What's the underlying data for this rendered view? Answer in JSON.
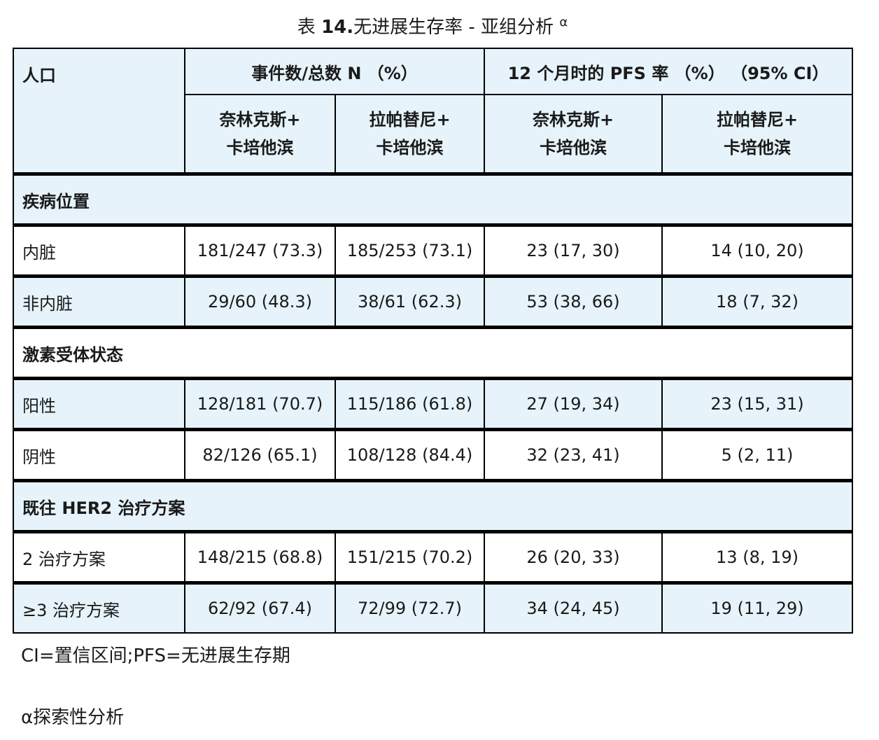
{
  "caption": {
    "prefix": "表 ",
    "number": "14.",
    "title": "无进展生存率 - 亚组分析",
    "sup": "α"
  },
  "header": {
    "population": "人口",
    "events_group": "事件数/总数 N （%）",
    "pfs_group": "12 个月时的 PFS 率 （%） （95% CI）",
    "sub": [
      [
        "奈林克斯+",
        "卡培他滨"
      ],
      [
        "拉帕替尼+",
        "卡培他滨"
      ],
      [
        "奈林克斯+",
        "卡培他滨"
      ],
      [
        "拉帕替尼+",
        "卡培他滨"
      ]
    ]
  },
  "rows": [
    {
      "type": "section",
      "label": "疾病位置",
      "shade": "blue"
    },
    {
      "type": "data",
      "shade": "white",
      "cells": [
        "内脏",
        "181/247 (73.3)",
        "185/253 (73.1)",
        "23 (17, 30)",
        "14 (10, 20)"
      ]
    },
    {
      "type": "data",
      "shade": "blue",
      "cells": [
        "非内脏",
        "29/60 (48.3)",
        "38/61 (62.3)",
        "53 (38, 66)",
        "18 (7, 32)"
      ]
    },
    {
      "type": "section",
      "label": "激素受体状态",
      "shade": "white"
    },
    {
      "type": "data",
      "shade": "blue",
      "cells": [
        "阳性",
        "128/181 (70.7)",
        "115/186 (61.8)",
        "27 (19, 34)",
        "23 (15, 31)"
      ]
    },
    {
      "type": "data",
      "shade": "white",
      "cells": [
        "阴性",
        "82/126 (65.1)",
        "108/128 (84.4)",
        "32 (23, 41)",
        "5 (2, 11)"
      ]
    },
    {
      "type": "section",
      "label": "既往 HER2 治疗方案",
      "shade": "blue"
    },
    {
      "type": "data",
      "shade": "white",
      "cells": [
        "2 治疗方案",
        "148/215 (68.8)",
        "151/215 (70.2)",
        "26 (20, 33)",
        "13 (8, 19)"
      ]
    },
    {
      "type": "data",
      "shade": "blue",
      "cells": [
        "≥3 治疗方案",
        "62/92 (67.4)",
        "72/99 (72.7)",
        "34 (24, 45)",
        "19 (11, 29)"
      ]
    }
  ],
  "footnotes": {
    "abbrev": "CI=置信区间;PFS=无进展生存期",
    "alpha": "α探索性分析"
  }
}
